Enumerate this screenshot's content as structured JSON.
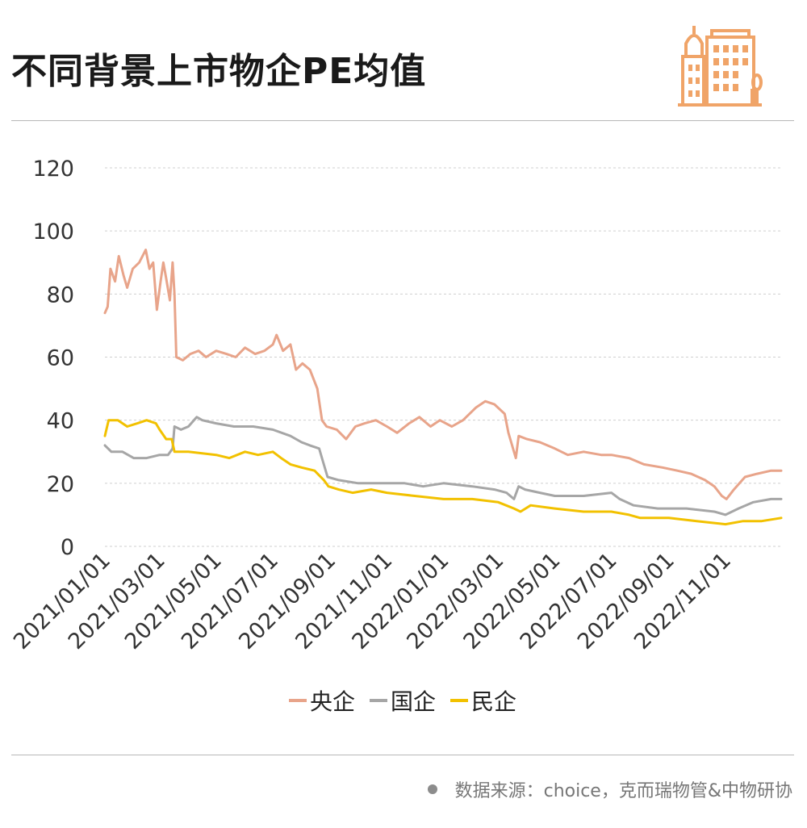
{
  "header": {
    "title": "不同背景上市物企PE均值",
    "logo_icon": "buildings-icon",
    "accent_color": "#f0a468"
  },
  "footer": {
    "source": "数据来源：choice，克而瑞物管&中物研协"
  },
  "chart_data": {
    "type": "line",
    "title": "不同背景上市物企PE均值",
    "xlabel": "",
    "ylabel": "",
    "ylim": [
      0,
      120
    ],
    "yticks": [
      0,
      20,
      40,
      60,
      80,
      100,
      120
    ],
    "x_range": [
      "2021/01/01",
      "2022/12/31"
    ],
    "xticks": [
      "2021/01/01",
      "2021/03/01",
      "2021/05/01",
      "2021/07/01",
      "2021/09/01",
      "2021/11/01",
      "2022/01/01",
      "2022/03/01",
      "2022/05/01",
      "2022/07/01",
      "2022/09/01",
      "2022/11/01"
    ],
    "grid": "horizontal dashed",
    "legend_position": "bottom",
    "series": [
      {
        "name": "央企",
        "color": "#e8a48a",
        "points": [
          [
            "2021/01/01",
            74
          ],
          [
            "2021/01/04",
            76
          ],
          [
            "2021/01/07",
            88
          ],
          [
            "2021/01/12",
            84
          ],
          [
            "2021/01/16",
            92
          ],
          [
            "2021/01/21",
            86
          ],
          [
            "2021/01/25",
            82
          ],
          [
            "2021/01/31",
            88
          ],
          [
            "2021/02/07",
            90
          ],
          [
            "2021/02/14",
            94
          ],
          [
            "2021/02/18",
            88
          ],
          [
            "2021/02/22",
            90
          ],
          [
            "2021/02/26",
            75
          ],
          [
            "2021/03/02",
            84
          ],
          [
            "2021/03/05",
            90
          ],
          [
            "2021/03/08",
            85
          ],
          [
            "2021/03/12",
            78
          ],
          [
            "2021/03/15",
            90
          ],
          [
            "2021/03/17",
            80
          ],
          [
            "2021/03/19",
            60
          ],
          [
            "2021/03/26",
            59
          ],
          [
            "2021/04/03",
            61
          ],
          [
            "2021/04/12",
            62
          ],
          [
            "2021/04/20",
            60
          ],
          [
            "2021/05/01",
            62
          ],
          [
            "2021/05/12",
            61
          ],
          [
            "2021/05/22",
            60
          ],
          [
            "2021/06/01",
            63
          ],
          [
            "2021/06/12",
            61
          ],
          [
            "2021/06/22",
            62
          ],
          [
            "2021/07/01",
            64
          ],
          [
            "2021/07/05",
            67
          ],
          [
            "2021/07/12",
            62
          ],
          [
            "2021/07/20",
            64
          ],
          [
            "2021/07/26",
            56
          ],
          [
            "2021/08/02",
            58
          ],
          [
            "2021/08/10",
            56
          ],
          [
            "2021/08/18",
            50
          ],
          [
            "2021/08/23",
            40
          ],
          [
            "2021/08/28",
            38
          ],
          [
            "2021/09/08",
            37
          ],
          [
            "2021/09/18",
            34
          ],
          [
            "2021/09/28",
            38
          ],
          [
            "2021/10/08",
            39
          ],
          [
            "2021/10/20",
            40
          ],
          [
            "2021/11/01",
            38
          ],
          [
            "2021/11/12",
            36
          ],
          [
            "2021/11/25",
            39
          ],
          [
            "2021/12/06",
            41
          ],
          [
            "2021/12/18",
            38
          ],
          [
            "2021/12/28",
            40
          ],
          [
            "2022/01/10",
            38
          ],
          [
            "2022/01/22",
            40
          ],
          [
            "2022/02/05",
            44
          ],
          [
            "2022/02/15",
            46
          ],
          [
            "2022/02/25",
            45
          ],
          [
            "2022/03/08",
            42
          ],
          [
            "2022/03/12",
            36
          ],
          [
            "2022/03/20",
            28
          ],
          [
            "2022/03/23",
            35
          ],
          [
            "2022/04/01",
            34
          ],
          [
            "2022/04/15",
            33
          ],
          [
            "2022/05/01",
            31
          ],
          [
            "2022/05/15",
            29
          ],
          [
            "2022/06/01",
            30
          ],
          [
            "2022/06/20",
            29
          ],
          [
            "2022/07/01",
            29
          ],
          [
            "2022/07/20",
            28
          ],
          [
            "2022/08/05",
            26
          ],
          [
            "2022/08/25",
            25
          ],
          [
            "2022/09/10",
            24
          ],
          [
            "2022/09/25",
            23
          ],
          [
            "2022/10/10",
            21
          ],
          [
            "2022/10/20",
            19
          ],
          [
            "2022/10/28",
            16
          ],
          [
            "2022/11/02",
            15
          ],
          [
            "2022/11/10",
            18
          ],
          [
            "2022/11/22",
            22
          ],
          [
            "2022/12/05",
            23
          ],
          [
            "2022/12/20",
            24
          ],
          [
            "2022/12/31",
            24
          ]
        ]
      },
      {
        "name": "国企",
        "color": "#a6a6a6",
        "points": [
          [
            "2021/01/01",
            32
          ],
          [
            "2021/01/08",
            30
          ],
          [
            "2021/01/20",
            30
          ],
          [
            "2021/02/01",
            28
          ],
          [
            "2021/02/15",
            28
          ],
          [
            "2021/03/01",
            29
          ],
          [
            "2021/03/10",
            29
          ],
          [
            "2021/03/15",
            31
          ],
          [
            "2021/03/17",
            38
          ],
          [
            "2021/03/24",
            37
          ],
          [
            "2021/04/01",
            38
          ],
          [
            "2021/04/10",
            41
          ],
          [
            "2021/04/16",
            40
          ],
          [
            "2021/05/01",
            39
          ],
          [
            "2021/05/20",
            38
          ],
          [
            "2021/06/10",
            38
          ],
          [
            "2021/07/01",
            37
          ],
          [
            "2021/07/20",
            35
          ],
          [
            "2021/08/01",
            33
          ],
          [
            "2021/08/10",
            32
          ],
          [
            "2021/08/20",
            31
          ],
          [
            "2021/08/24",
            27
          ],
          [
            "2021/08/29",
            22
          ],
          [
            "2021/09/10",
            21
          ],
          [
            "2021/10/01",
            20
          ],
          [
            "2021/11/01",
            20
          ],
          [
            "2021/11/20",
            20
          ],
          [
            "2021/12/10",
            19
          ],
          [
            "2022/01/01",
            20
          ],
          [
            "2022/02/01",
            19
          ],
          [
            "2022/02/25",
            18
          ],
          [
            "2022/03/10",
            17
          ],
          [
            "2022/03/18",
            15
          ],
          [
            "2022/03/23",
            19
          ],
          [
            "2022/03/30",
            18
          ],
          [
            "2022/04/15",
            17
          ],
          [
            "2022/05/01",
            16
          ],
          [
            "2022/06/01",
            16
          ],
          [
            "2022/07/01",
            17
          ],
          [
            "2022/07/10",
            15
          ],
          [
            "2022/07/25",
            13
          ],
          [
            "2022/08/20",
            12
          ],
          [
            "2022/09/20",
            12
          ],
          [
            "2022/10/20",
            11
          ],
          [
            "2022/11/01",
            10
          ],
          [
            "2022/11/15",
            12
          ],
          [
            "2022/12/01",
            14
          ],
          [
            "2022/12/20",
            15
          ],
          [
            "2022/12/31",
            15
          ]
        ]
      },
      {
        "name": "民企",
        "color": "#f2c100",
        "points": [
          [
            "2021/01/01",
            35
          ],
          [
            "2021/01/05",
            40
          ],
          [
            "2021/01/15",
            40
          ],
          [
            "2021/01/25",
            38
          ],
          [
            "2021/02/05",
            39
          ],
          [
            "2021/02/15",
            40
          ],
          [
            "2021/02/25",
            39
          ],
          [
            "2021/03/01",
            37
          ],
          [
            "2021/03/08",
            34
          ],
          [
            "2021/03/14",
            34
          ],
          [
            "2021/03/17",
            30
          ],
          [
            "2021/04/01",
            30
          ],
          [
            "2021/05/01",
            29
          ],
          [
            "2021/05/15",
            28
          ],
          [
            "2021/06/01",
            30
          ],
          [
            "2021/06/15",
            29
          ],
          [
            "2021/07/01",
            30
          ],
          [
            "2021/07/10",
            28
          ],
          [
            "2021/07/20",
            26
          ],
          [
            "2021/08/01",
            25
          ],
          [
            "2021/08/15",
            24
          ],
          [
            "2021/08/25",
            21
          ],
          [
            "2021/08/30",
            19
          ],
          [
            "2021/09/10",
            18
          ],
          [
            "2021/09/25",
            17
          ],
          [
            "2021/10/15",
            18
          ],
          [
            "2021/11/01",
            17
          ],
          [
            "2021/12/01",
            16
          ],
          [
            "2022/01/01",
            15
          ],
          [
            "2022/02/01",
            15
          ],
          [
            "2022/03/01",
            14
          ],
          [
            "2022/03/18",
            12
          ],
          [
            "2022/03/25",
            11
          ],
          [
            "2022/04/05",
            13
          ],
          [
            "2022/05/01",
            12
          ],
          [
            "2022/06/01",
            11
          ],
          [
            "2022/07/01",
            11
          ],
          [
            "2022/07/20",
            10
          ],
          [
            "2022/08/01",
            9
          ],
          [
            "2022/09/01",
            9
          ],
          [
            "2022/10/01",
            8
          ],
          [
            "2022/11/01",
            7
          ],
          [
            "2022/11/20",
            8
          ],
          [
            "2022/12/10",
            8
          ],
          [
            "2022/12/31",
            9
          ]
        ]
      }
    ]
  }
}
